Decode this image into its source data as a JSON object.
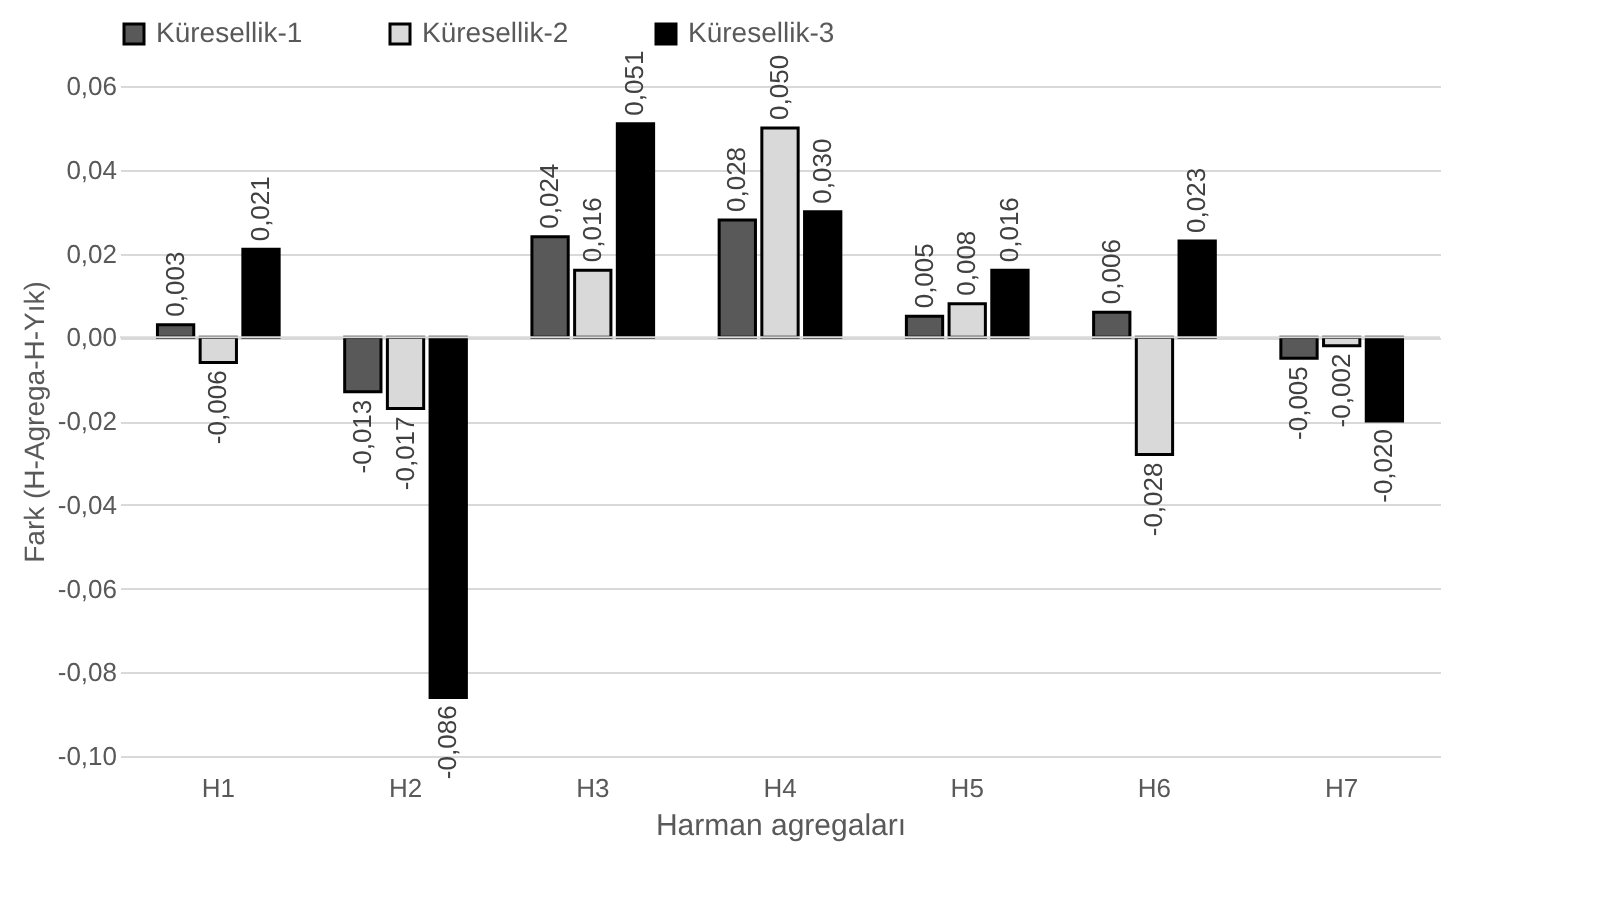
{
  "chart_data": {
    "type": "bar",
    "categories": [
      "H1",
      "H2",
      "H3",
      "H4",
      "H5",
      "H6",
      "H7"
    ],
    "xlabel": "Harman agregaları",
    "ylabel": "Fark (H-Agrega-H-Yık)",
    "series": [
      {
        "name": "Küresellik-1",
        "color": "#595959",
        "values": [
          0.003,
          -0.013,
          0.024,
          0.028,
          0.005,
          0.006,
          -0.005
        ],
        "value_labels": [
          "0,003",
          "-0,013",
          "0,024",
          "0,028",
          "0,005",
          "0,006",
          "-0,005"
        ]
      },
      {
        "name": "Küresellik-2",
        "color": "#d9d9d9",
        "values": [
          -0.006,
          -0.017,
          0.016,
          0.05,
          0.008,
          -0.028,
          -0.002
        ],
        "value_labels": [
          "-0,006",
          "-0,017",
          "0,016",
          "0,050",
          "0,008",
          "-0,028",
          "-0,002"
        ]
      },
      {
        "name": "Küresellik-3",
        "color": "#000000",
        "values": [
          0.021,
          -0.086,
          0.051,
          0.03,
          0.016,
          0.023,
          -0.02
        ],
        "value_labels": [
          "0,021",
          "-0,086",
          "0,051",
          "0,030",
          "0,016",
          "0,023",
          "-0,020"
        ]
      }
    ],
    "ylim": [
      -0.1,
      0.06
    ],
    "yticks": [
      {
        "value": -0.1,
        "label": "-0,10"
      },
      {
        "value": -0.08,
        "label": "-0,08"
      },
      {
        "value": -0.06,
        "label": "-0,06"
      },
      {
        "value": -0.04,
        "label": "-0,04"
      },
      {
        "value": -0.02,
        "label": "-0,02"
      },
      {
        "value": 0,
        "label": "0,00"
      },
      {
        "value": 0.02,
        "label": "0,02"
      },
      {
        "value": 0.04,
        "label": "0,04"
      },
      {
        "value": 0.06,
        "label": "0,06"
      }
    ],
    "grid": "y",
    "legend": "top"
  }
}
